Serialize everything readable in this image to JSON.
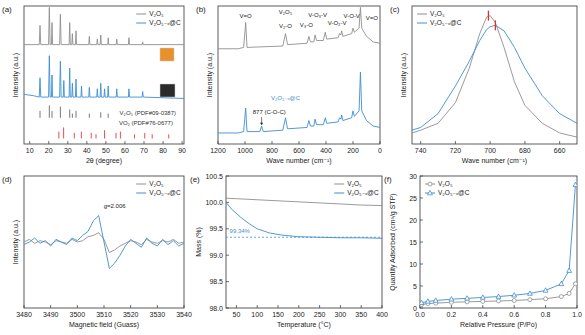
{
  "chart_data": [
    {
      "type": "line",
      "panel_label": "(a)",
      "x_label": "2θ (degree)",
      "y_label": "Intensity (a.u.)",
      "xlim": [
        7,
        91
      ],
      "xticks": [
        10,
        20,
        30,
        40,
        50,
        60,
        70,
        80,
        90
      ],
      "ylim": [
        0,
        100
      ],
      "tick_labels": "x",
      "grid": false,
      "legend": "upper right",
      "series": [
        {
          "name": "V₂O₅",
          "color": "#8f8f8f",
          "x": [
            7,
            15,
            15.4,
            15.8,
            19.9,
            20.3,
            20.7,
            21.4,
            21.7,
            22,
            25.7,
            26.1,
            26.5,
            30.7,
            31,
            31.3,
            32.1,
            32.4,
            32.7,
            34,
            34.3,
            34.6,
            41,
            41.3,
            41.6,
            45.2,
            45.5,
            45.8,
            47,
            47.3,
            47.6,
            51,
            51.2,
            51.5,
            55.4,
            55.7,
            56,
            61.8,
            62.1,
            62.4,
            69,
            69.3,
            69.6,
            91
          ],
          "values": [
            72,
            72,
            86,
            72,
            72,
            99,
            72,
            72,
            88,
            72,
            72,
            94,
            72,
            72,
            88,
            72,
            72,
            80,
            72,
            72,
            82,
            72,
            72,
            78,
            72,
            72,
            76,
            72,
            72,
            79,
            72,
            72,
            77,
            72,
            72,
            76,
            72,
            72,
            77,
            72,
            72,
            74,
            72,
            72
          ]
        },
        {
          "name": "V₂O₅₋ₓ@C",
          "color": "#3d8fd1",
          "x": [
            7,
            12,
            15,
            15.4,
            15.8,
            19.9,
            20.3,
            20.7,
            21.4,
            21.7,
            22,
            25.7,
            26.1,
            26.5,
            27.6,
            27.9,
            28.2,
            30.7,
            31,
            31.3,
            32.1,
            32.4,
            32.7,
            34,
            34.3,
            34.6,
            36.9,
            37.2,
            37.5,
            41,
            41.3,
            41.6,
            45.2,
            45.5,
            45.8,
            47,
            47.3,
            47.6,
            49,
            49.3,
            49.6,
            50.9,
            51.2,
            51.5,
            55.4,
            55.7,
            56,
            61.8,
            62.1,
            62.4,
            69,
            69.3,
            69.6,
            91
          ],
          "values": [
            36,
            35,
            34,
            48,
            34,
            34,
            64,
            34,
            34,
            50,
            34,
            34,
            60,
            34,
            34,
            46,
            34,
            34,
            55,
            34,
            34,
            44,
            34,
            34,
            47,
            34,
            34,
            42,
            34,
            34,
            41,
            34,
            34,
            40,
            34,
            34,
            44,
            34,
            34,
            40,
            34,
            34,
            42,
            34,
            34,
            40,
            34,
            34,
            40,
            34,
            34,
            38,
            34,
            33
          ]
        },
        {
          "type": "stem",
          "color": "#555555",
          "base": 19,
          "x": [
            15.4,
            20.3,
            21.7,
            26.1,
            31,
            32.4,
            34.3,
            41.3,
            47.3,
            51.2
          ],
          "values": [
            24,
            28,
            24,
            27,
            25,
            22,
            24,
            22,
            23,
            22
          ]
        },
        {
          "type": "stem",
          "color": "#e02020",
          "base": 4,
          "x": [
            25.3,
            27.8,
            33.4,
            37.1,
            42.3,
            44.8,
            49.3,
            55.3,
            57.6,
            65,
            70.4,
            74.3,
            83
          ],
          "values": [
            9,
            12,
            8,
            9,
            8,
            7,
            10,
            8,
            9,
            7,
            8,
            7,
            7
          ]
        }
      ],
      "annotations": [
        {
          "text": "V₂O₅ (PDF#09-0387)",
          "x": 72,
          "y": 21,
          "color": "#333333"
        },
        {
          "text": "VO₂ (PDF#76-0677)",
          "x": 71,
          "y": 14,
          "color": "#333333"
        }
      ]
    },
    {
      "type": "line",
      "panel_label": "(b)",
      "x_label": "Wave number (cm⁻¹)",
      "y_label": "Intensity (a.u.)",
      "xlim": [
        1200,
        0
      ],
      "xticks": [
        1200,
        1000,
        800,
        600,
        400,
        200,
        0
      ],
      "ylim": [
        0,
        100
      ],
      "tick_labels": "x",
      "grid": false,
      "series": [
        {
          "color": "#8f8f8f",
          "x": [
            1200,
            1050,
            1010,
            995,
            985,
            720,
            700,
            685,
            540,
            527,
            515,
            490,
            481,
            470,
            420,
            405,
            395,
            310,
            300,
            290,
            284,
            275,
            210,
            200,
            190,
            155,
            145,
            135,
            100,
            50,
            0
          ],
          "values": [
            69,
            69,
            70,
            88,
            70,
            71,
            80,
            72,
            73,
            78,
            74,
            74,
            79,
            75,
            75,
            81,
            76,
            77,
            80,
            79,
            82,
            78,
            80,
            84,
            81,
            84,
            99,
            84,
            78,
            74,
            73
          ]
        },
        {
          "color": "#3d8fd1",
          "x": [
            1200,
            1050,
            1010,
            995,
            985,
            890,
            877,
            865,
            720,
            700,
            685,
            540,
            527,
            515,
            490,
            481,
            470,
            420,
            405,
            395,
            310,
            300,
            290,
            284,
            275,
            210,
            200,
            190,
            155,
            145,
            135,
            100,
            50,
            0
          ],
          "values": [
            8,
            8,
            9,
            26,
            9,
            9,
            13,
            9,
            10,
            19,
            11,
            12,
            17,
            13,
            13,
            18,
            14,
            14,
            19,
            15,
            16,
            19,
            18,
            21,
            17,
            19,
            24,
            20,
            24,
            52,
            24,
            17,
            13,
            12
          ]
        }
      ],
      "annotations": [
        {
          "text": "V₂O₅",
          "x": 700,
          "y": 94,
          "color": "#222222"
        },
        {
          "text": "V=O",
          "x": 995,
          "y": 91,
          "color": "#222222"
        },
        {
          "text": "V₂-O",
          "x": 700,
          "y": 84,
          "color": "#222222"
        },
        {
          "text": "V₃-O",
          "x": 545,
          "y": 85,
          "color": "#222222"
        },
        {
          "text": "V-O₃-V",
          "x": 462,
          "y": 92,
          "color": "#222222"
        },
        {
          "text": "V-O₂-V",
          "x": 318,
          "y": 86,
          "color": "#222222"
        },
        {
          "text": "V-O-V",
          "x": 210,
          "y": 91,
          "color": "#222222"
        },
        {
          "text": "V=O",
          "x": 60,
          "y": 90,
          "color": "#222222"
        },
        {
          "text": "V₂O₅₋ₓ@C",
          "x": 700,
          "y": 32,
          "color": "#3d8fd1"
        },
        {
          "text": "877 (C-O-C)",
          "x": 820,
          "y": 22,
          "color": "#222222",
          "arrow_from": [
            877,
            19.5
          ],
          "arrow_to": [
            877,
            13.5
          ]
        }
      ]
    },
    {
      "type": "line",
      "panel_label": "(c)",
      "x_label": "Wave number (cm⁻¹)",
      "y_label": "Intensity (a.u.)",
      "xlim": [
        745,
        650
      ],
      "xticks": [
        740,
        720,
        700,
        680,
        660
      ],
      "ylim": [
        0,
        100
      ],
      "tick_labels": "x",
      "grid": false,
      "legend": "upper left",
      "series": [
        {
          "name": "V₂O₅",
          "color": "#8f8f8f",
          "x": [
            745,
            740,
            730,
            720,
            712,
            706,
            702,
            700,
            697,
            692,
            686,
            680,
            670,
            660,
            650
          ],
          "values": [
            8,
            10,
            15,
            30,
            55,
            80,
            92,
            93,
            88,
            70,
            45,
            28,
            15,
            8,
            5
          ]
        },
        {
          "name": "V₂O₅₋ₓ@C",
          "color": "#3d8fd1",
          "x": [
            745,
            740,
            730,
            720,
            712,
            706,
            702,
            700,
            697,
            692,
            686,
            680,
            670,
            660,
            650
          ],
          "values": [
            10,
            12,
            22,
            42,
            60,
            75,
            83,
            85,
            86,
            82,
            70,
            55,
            35,
            22,
            15
          ]
        }
      ],
      "peak_marks": [
        {
          "x": 701,
          "y": 93,
          "color": "#e03030"
        },
        {
          "x": 697,
          "y": 86,
          "color": "#e03030"
        }
      ]
    },
    {
      "type": "line",
      "panel_label": "(d)",
      "x_label": "Magnetic field (Guass)",
      "y_label": "Intensity (a.u.)",
      "xlim": [
        3480,
        3540
      ],
      "xticks": [
        3480,
        3490,
        3500,
        3510,
        3520,
        3530,
        3540
      ],
      "ylim": [
        0,
        100
      ],
      "tick_labels": "x",
      "grid": false,
      "legend": "upper right",
      "series": [
        {
          "name": "V₂O₅",
          "color": "#8f8f8f",
          "x": [
            3480,
            3482,
            3484,
            3486,
            3488,
            3490,
            3492,
            3494,
            3496,
            3498,
            3500,
            3502,
            3504,
            3506,
            3508,
            3510,
            3512,
            3514,
            3516,
            3518,
            3520,
            3522,
            3524,
            3526,
            3528,
            3530,
            3532,
            3534,
            3536,
            3538,
            3540
          ],
          "values": [
            50,
            52,
            49,
            51,
            50,
            48,
            51,
            50,
            49,
            52,
            50,
            51,
            54,
            55,
            57,
            52,
            42,
            44,
            47,
            49,
            51,
            50,
            48,
            52,
            50,
            49,
            51,
            50,
            52,
            49,
            50
          ]
        },
        {
          "name": "V₂O₅₋ₓ@C",
          "color": "#3d8fd1",
          "x": [
            3480,
            3482,
            3484,
            3486,
            3488,
            3490,
            3492,
            3494,
            3496,
            3498,
            3500,
            3502,
            3504,
            3506,
            3508,
            3510,
            3512,
            3514,
            3516,
            3518,
            3520,
            3522,
            3524,
            3526,
            3528,
            3530,
            3532,
            3534,
            3536,
            3538,
            3540
          ],
          "values": [
            48,
            50,
            53,
            49,
            51,
            47,
            52,
            50,
            48,
            53,
            51,
            55,
            58,
            66,
            70,
            50,
            30,
            34,
            40,
            47,
            52,
            49,
            46,
            53,
            49,
            47,
            52,
            48,
            51,
            47,
            49
          ]
        }
      ],
      "annotations": [
        {
          "text": "g=2.006",
          "x": 3514,
          "y": 76,
          "color": "#222222"
        }
      ]
    },
    {
      "type": "line",
      "panel_label": "(e)",
      "x_label": "Temperature (°C)",
      "y_label": "Mass (%)",
      "xlim": [
        25,
        400
      ],
      "xticks": [
        50,
        100,
        150,
        200,
        250,
        300,
        350,
        400
      ],
      "ylim": [
        98,
        100.5
      ],
      "yticks": [
        {
          "value": 98,
          "label": "98.0"
        },
        98.5,
        {
          "value": 99,
          "label": "99.0"
        },
        99.5,
        {
          "value": 100,
          "label": "100.0"
        },
        100.5
      ],
      "grid": false,
      "legend": "upper right",
      "series": [
        {
          "name": "V₂O₅",
          "color": "#8f8f8f",
          "x": [
            25,
            50,
            100,
            150,
            200,
            250,
            300,
            350,
            400
          ],
          "values": [
            100.08,
            100.07,
            100.05,
            100.03,
            100.01,
            99.99,
            99.97,
            99.95,
            99.94
          ]
        },
        {
          "name": "V₂O₅₋ₓ@C",
          "color": "#3d8fd1",
          "x": [
            25,
            40,
            60,
            80,
            100,
            130,
            160,
            200,
            250,
            300,
            350,
            400
          ],
          "values": [
            100,
            99.86,
            99.72,
            99.6,
            99.5,
            99.42,
            99.38,
            99.35,
            99.34,
            99.33,
            99.33,
            99.32
          ]
        }
      ],
      "reference_lines": [
        {
          "y": 99.34,
          "color": "#3d8fd1",
          "line_style": "dashed"
        }
      ],
      "annotations": [
        {
          "text": "99.34%",
          "x": 58,
          "y": 99.42,
          "color": "#3d8fd1"
        }
      ]
    },
    {
      "type": "line",
      "panel_label": "(f)",
      "x_label": "Relative Pressure (P/Po)",
      "y_label": "Quantity Adsorbed (cm³/g STP)",
      "xlim": [
        0,
        1
      ],
      "xticks": [
        {
          "value": 0,
          "label": "0.0"
        },
        0.2,
        0.4,
        0.6,
        0.8,
        {
          "value": 1,
          "label": "1.0"
        }
      ],
      "ylim": [
        0,
        30
      ],
      "yticks": [
        0,
        5,
        10,
        15,
        20,
        25,
        30
      ],
      "grid": false,
      "legend": "upper left",
      "series": [
        {
          "name": "V₂O₅",
          "color": "#8f8f8f",
          "marker": "circle",
          "x": [
            0.01,
            0.05,
            0.1,
            0.2,
            0.3,
            0.4,
            0.5,
            0.6,
            0.7,
            0.8,
            0.9,
            0.95,
            0.99
          ],
          "values": [
            0.8,
            1,
            1.1,
            1.3,
            1.4,
            1.5,
            1.6,
            1.7,
            1.9,
            2.1,
            2.6,
            3.3,
            5.5
          ]
        },
        {
          "name": "V₂O₅₋ₓ@C",
          "color": "#3d8fd1",
          "marker": "triangle",
          "x": [
            0.01,
            0.05,
            0.1,
            0.2,
            0.3,
            0.4,
            0.5,
            0.6,
            0.7,
            0.8,
            0.9,
            0.95,
            0.99
          ],
          "values": [
            1.2,
            1.5,
            1.7,
            2,
            2.2,
            2.4,
            2.6,
            2.9,
            3.3,
            4,
            5.5,
            8.5,
            28
          ]
        }
      ]
    }
  ]
}
